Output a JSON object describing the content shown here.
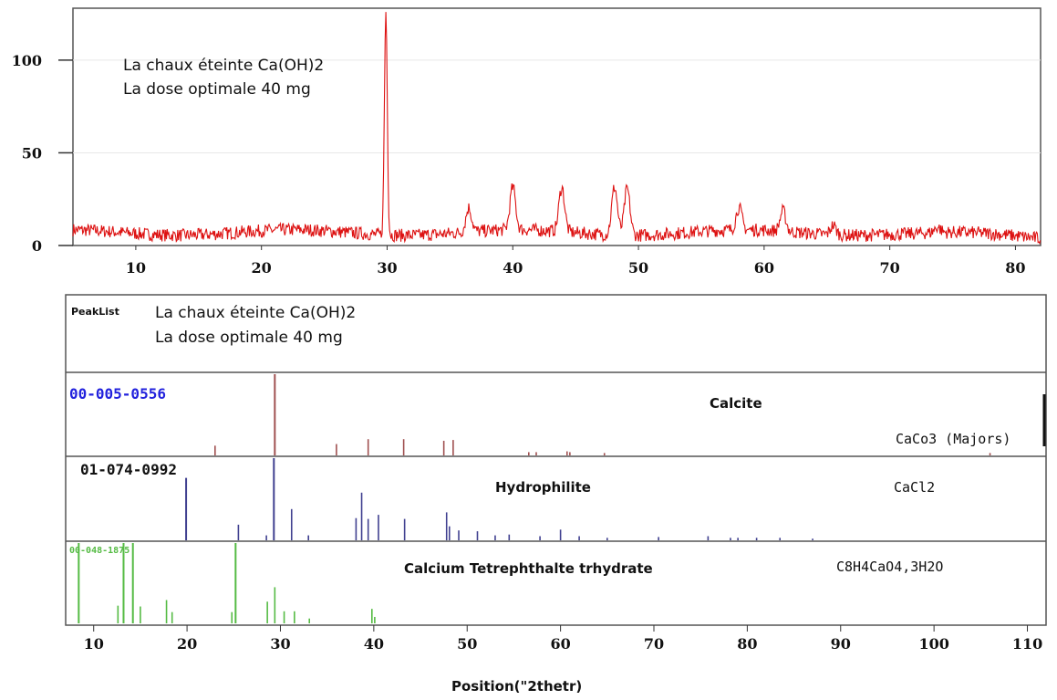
{
  "chart_data": [
    {
      "type": "line",
      "title": "",
      "annotation": [
        "La chaux éteinte Ca(OH)2",
        "La dose optimale 40 mg"
      ],
      "xlabel": "",
      "ylabel": "",
      "xlim": [
        5,
        82
      ],
      "ylim": [
        0,
        128
      ],
      "x_ticks": [
        10,
        20,
        30,
        40,
        50,
        60,
        70,
        80
      ],
      "y_ticks": [
        0,
        50,
        100
      ],
      "baseline": 7,
      "color": "#dd1111",
      "peaks": [
        {
          "x": 29.9,
          "y": 128
        },
        {
          "x": 36.5,
          "y": 20
        },
        {
          "x": 40.0,
          "y": 30
        },
        {
          "x": 43.9,
          "y": 31
        },
        {
          "x": 48.1,
          "y": 33
        },
        {
          "x": 49.1,
          "y": 32
        },
        {
          "x": 58.0,
          "y": 19
        },
        {
          "x": 61.5,
          "y": 18
        },
        {
          "x": 65.5,
          "y": 12
        },
        {
          "x": 73.8,
          "y": 10
        }
      ]
    },
    {
      "type": "bar",
      "title": "",
      "xlabel": "Position(\"2thetr)",
      "xlim": [
        7,
        112
      ],
      "x_ticks": [
        10,
        20,
        30,
        40,
        50,
        60,
        70,
        80,
        90,
        100,
        110
      ],
      "peaklist_label": "PeakList",
      "annotation": [
        "La chaux éteinte Ca(OH)2",
        "La dose optimale 40 mg"
      ],
      "series": [
        {
          "card": "00-005-0556",
          "name": "Calcite",
          "formula": "CaCo3 (Majors)",
          "color": "#a05050",
          "card_color": "#2222dd",
          "x": [
            23.0,
            29.4,
            36.0,
            39.4,
            43.2,
            47.5,
            48.5,
            56.6,
            57.4,
            60.7,
            61.0,
            64.7,
            106.0
          ],
          "values": [
            12,
            100,
            14,
            20,
            20,
            18,
            19,
            4,
            4,
            5,
            4,
            3,
            3
          ]
        },
        {
          "card": "01-074-0992",
          "name": "Hydrophilite",
          "formula": "CaCl2",
          "color": "#404090",
          "card_color": "#111111",
          "x": [
            19.9,
            25.5,
            28.5,
            29.3,
            31.2,
            33.0,
            38.1,
            38.7,
            39.4,
            40.5,
            43.3,
            47.8,
            48.1,
            49.1,
            51.1,
            53.0,
            54.5,
            57.8,
            60.0,
            62.0,
            65.0,
            70.5,
            75.8,
            78.2,
            79.0,
            81.0,
            83.5,
            87.0
          ],
          "values": [
            76,
            19,
            6,
            100,
            38,
            6,
            27,
            58,
            26,
            31,
            26,
            34,
            17,
            12,
            11,
            6,
            7,
            5,
            13,
            5,
            3,
            4,
            5,
            3,
            3,
            3,
            3,
            2
          ]
        },
        {
          "card": "00-048-1875",
          "name": "Calcium Tetrephthalte trhydrate",
          "formula": "C8H4CaO4,3H2O",
          "color": "#55bb44",
          "card_color": "#55bb44",
          "x": [
            8.4,
            12.6,
            13.2,
            14.2,
            15.0,
            17.8,
            18.4,
            24.8,
            25.2,
            28.6,
            29.4,
            30.4,
            31.5,
            33.1,
            39.8,
            40.1
          ],
          "values": [
            100,
            22,
            100,
            100,
            21,
            29,
            14,
            14,
            100,
            27,
            45,
            15,
            15,
            6,
            18,
            8
          ]
        }
      ]
    }
  ]
}
